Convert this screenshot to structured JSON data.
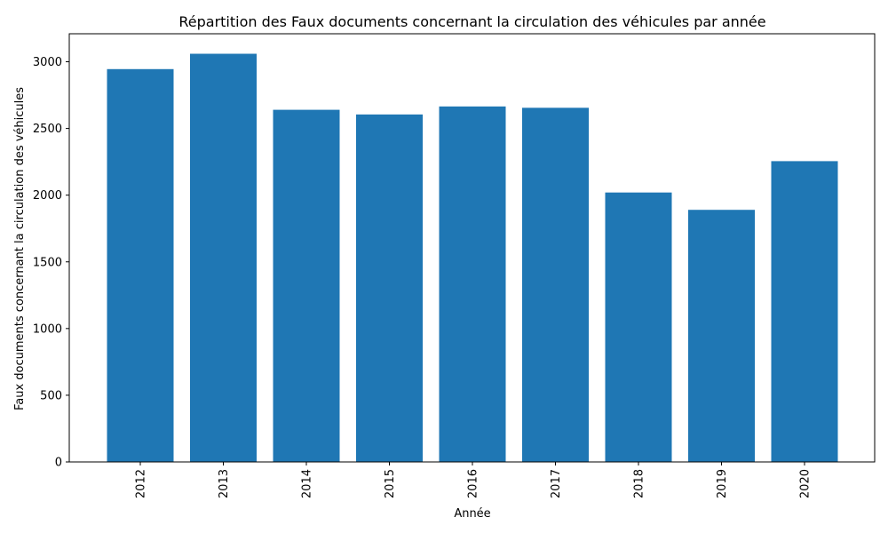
{
  "chart_data": {
    "type": "bar",
    "title": "Répartition des Faux documents concernant la circulation des véhicules par année",
    "xlabel": "Année",
    "ylabel": "Faux documents concernant la circulation des véhicules",
    "categories": [
      "2012",
      "2013",
      "2014",
      "2015",
      "2016",
      "2017",
      "2018",
      "2019",
      "2020"
    ],
    "values": [
      2945,
      3060,
      2640,
      2605,
      2665,
      2655,
      2020,
      1890,
      2255
    ],
    "ylim": [
      0,
      3210
    ],
    "yticks": [
      0,
      500,
      1000,
      1500,
      2000,
      2500,
      3000
    ],
    "ytick_labels": [
      "0",
      "500",
      "1000",
      "1500",
      "2000",
      "2500",
      "3000"
    ],
    "bar_color": "#1f77b4",
    "grid": false,
    "legend": "none",
    "xtick_rotation": "vertical"
  }
}
